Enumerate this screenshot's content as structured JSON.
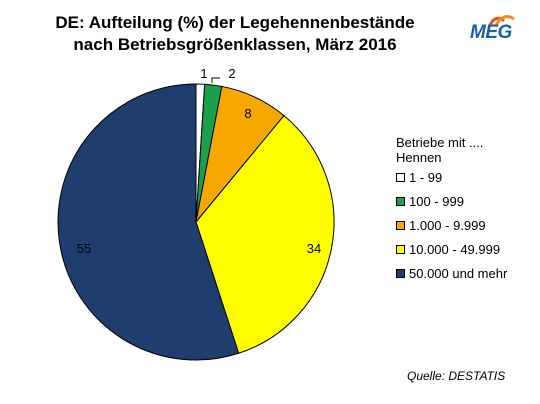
{
  "title_line1": "DE: Aufteilung (%) der Legehennenbestände",
  "title_line2": "nach Betriebsgrößenklassen, März 2016",
  "logo_text": "MEG",
  "legend_title_line1": "Betriebe mit ....",
  "legend_title_line2": "Hennen",
  "source": "Quelle: DESTATIS",
  "chart_data": {
    "type": "pie",
    "start_angle_deg": 0,
    "direction": "clockwise",
    "slices": [
      {
        "category": "1 - 99",
        "value": 1,
        "label": "1",
        "color": "#ffffff"
      },
      {
        "category": "100 - 999",
        "value": 2,
        "label": "2",
        "color": "#1aa04a"
      },
      {
        "category": "1.000 - 9.999",
        "value": 8,
        "label": "8",
        "color": "#f7a800"
      },
      {
        "category": "10.000 - 49.999",
        "value": 34,
        "label": "34",
        "color": "#ffff00"
      },
      {
        "category": "50.000 und mehr",
        "value": 55,
        "label": "55",
        "color": "#1f3e6d"
      }
    ],
    "legend_position": "right"
  }
}
